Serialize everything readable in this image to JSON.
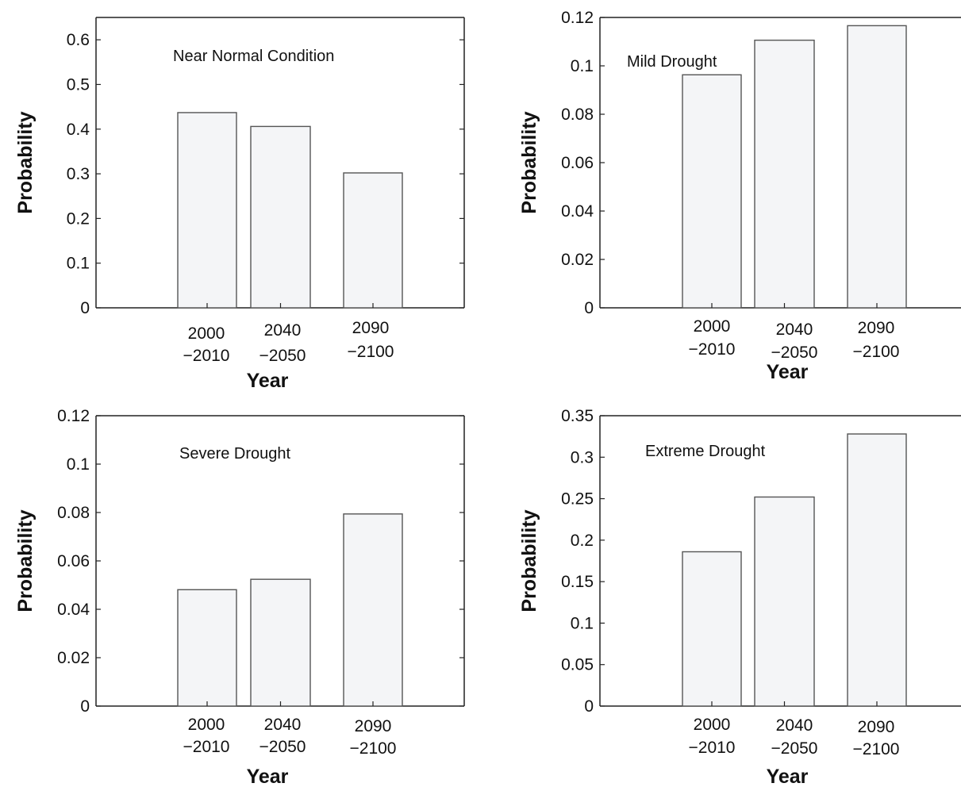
{
  "chart_data": [
    {
      "type": "bar",
      "annotation": "Near Normal Condition",
      "xlabel": "Year",
      "ylabel": "Probability",
      "categories": [
        [
          "2000",
          "−2010"
        ],
        [
          "2040",
          "−2050"
        ],
        [
          "2090",
          "−2100"
        ]
      ],
      "values": [
        0.437,
        0.406,
        0.302
      ],
      "ylim": [
        0,
        0.65
      ],
      "yticks": [
        "0",
        "0.1",
        "0.2",
        "0.3",
        "0.4",
        "0.5",
        "0.6"
      ],
      "bar_fill": "#f4f5f7",
      "bar_stroke": "#555555"
    },
    {
      "type": "bar",
      "annotation": "Mild Drought",
      "xlabel": "Year",
      "ylabel": "Probability",
      "categories": [
        [
          "2000",
          "−2010"
        ],
        [
          "2040",
          "−2050"
        ],
        [
          "2090",
          "−2100"
        ]
      ],
      "values": [
        0.0963,
        0.1106,
        0.1166
      ],
      "ylim": [
        0,
        0.12
      ],
      "yticks": [
        "0",
        "0.02",
        "0.04",
        "0.06",
        "0.08",
        "0.1",
        "0.12"
      ],
      "bar_fill": "#f4f5f7",
      "bar_stroke": "#555555"
    },
    {
      "type": "bar",
      "annotation": "Severe Drought",
      "xlabel": "Year",
      "ylabel": "Probability",
      "categories": [
        [
          "2000",
          "−2010"
        ],
        [
          "2040",
          "−2050"
        ],
        [
          "2090",
          "−2100"
        ]
      ],
      "values": [
        0.0481,
        0.0524,
        0.0794
      ],
      "ylim": [
        0,
        0.12
      ],
      "yticks": [
        "0",
        "0.02",
        "0.04",
        "0.06",
        "0.08",
        "0.1",
        "0.12"
      ],
      "bar_fill": "#f4f5f7",
      "bar_stroke": "#555555"
    },
    {
      "type": "bar",
      "annotation": "Extreme Drought",
      "xlabel": "Year",
      "ylabel": "Probability",
      "categories": [
        [
          "2000",
          "−2010"
        ],
        [
          "2040",
          "−2050"
        ],
        [
          "2090",
          "−2100"
        ]
      ],
      "values": [
        0.186,
        0.252,
        0.328
      ],
      "ylim": [
        0,
        0.35
      ],
      "yticks": [
        "0",
        "0.05",
        "0.1",
        "0.15",
        "0.2",
        "0.25",
        "0.3",
        "0.35"
      ],
      "bar_fill": "#f4f5f7",
      "bar_stroke": "#555555"
    }
  ]
}
